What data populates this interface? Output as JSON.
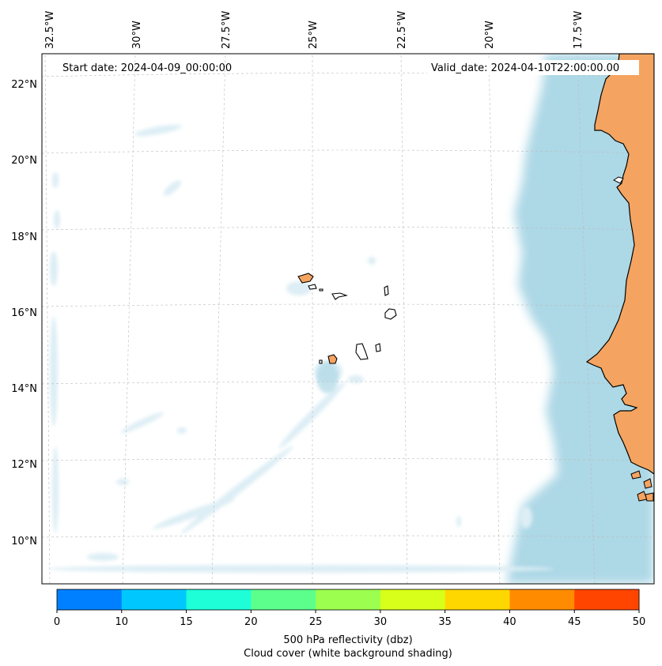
{
  "map": {
    "region": "Cape Verde and West African coast",
    "start_date_label": "Start date: 2024-04-09_00:00:00",
    "valid_date_label": "Valid_date: 2024-04-10T22:00:00.00",
    "lon_labels": [
      "32.5°W",
      "30°W",
      "27.5°W",
      "25°W",
      "22.5°W",
      "20°W",
      "17.5°W"
    ],
    "lat_labels": [
      "22°N",
      "20°N",
      "18°N",
      "16°N",
      "14°N",
      "12°N",
      "10°N"
    ],
    "colors": {
      "land": "#f4a460",
      "cloud_cover": "#add8e6",
      "ocean": "#ffffff",
      "coastline": "#000000",
      "gridline": "#bbbbbb"
    }
  },
  "colorbar": {
    "ticks": [
      "0",
      "10",
      "15",
      "20",
      "25",
      "30",
      "35",
      "40",
      "45",
      "50"
    ],
    "colors": [
      "#0080ff",
      "#00c8ff",
      "#1effd8",
      "#5cff8c",
      "#9cff50",
      "#d8ff1a",
      "#ffd700",
      "#ff8c00",
      "#ff4500"
    ],
    "label_line1": "500 hPa reflectivity (dbz)",
    "label_line2": "Cloud cover (white background shading)"
  }
}
